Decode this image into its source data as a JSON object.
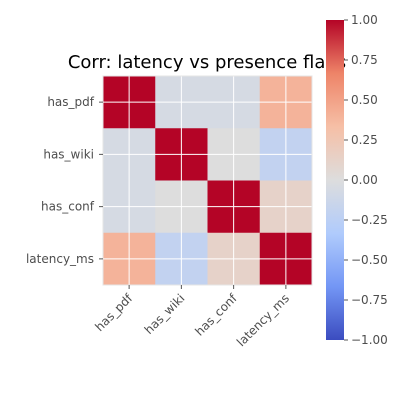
{
  "chart_data": {
    "type": "heatmap",
    "title": "Corr: latency vs presence flags",
    "x_categories": [
      "has_pdf",
      "has_wiki",
      "has_conf",
      "latency_ms"
    ],
    "y_categories": [
      "has_pdf",
      "has_wiki",
      "has_conf",
      "latency_ms"
    ],
    "values": [
      [
        1.0,
        -0.06,
        -0.06,
        0.4
      ],
      [
        -0.06,
        1.0,
        0.0,
        -0.2
      ],
      [
        -0.06,
        0.0,
        1.0,
        0.12
      ],
      [
        0.4,
        -0.2,
        0.12,
        1.0
      ]
    ],
    "colorbar": {
      "min": -1.0,
      "max": 1.0,
      "ticks": [
        1.0,
        0.75,
        0.5,
        0.25,
        0.0,
        -0.25,
        -0.5,
        -0.75,
        -1.0
      ],
      "tick_labels": [
        "1.00",
        "0.75",
        "0.50",
        "0.25",
        "0.00",
        "−0.25",
        "−0.50",
        "−0.75",
        "−1.00"
      ],
      "colormap": "coolwarm",
      "cmap_stops": [
        "#3b4cc0",
        "#7396f5",
        "#b0cbfc",
        "#dddddd",
        "#f6bfa6",
        "#ee8468",
        "#b40426"
      ]
    },
    "grid": true,
    "grid_color": "#ffffff"
  }
}
